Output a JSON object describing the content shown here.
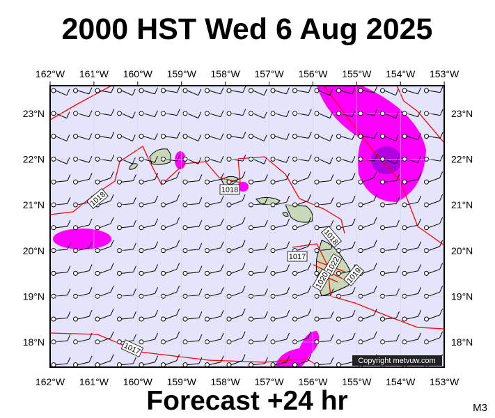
{
  "header": {
    "title": "2000 HST Wed 6 Aug 2025"
  },
  "footer": {
    "subtitle": "Forecast +24 hr",
    "model": "M3"
  },
  "map": {
    "copyright": "Copyright metvuw.com",
    "lon_labels": [
      "162°W",
      "161°W",
      "160°W",
      "159°W",
      "158°W",
      "157°W",
      "156°W",
      "155°W",
      "154°W",
      "153°W"
    ],
    "lat_labels": [
      "23°N",
      "22°N",
      "21°N",
      "20°N",
      "19°N",
      "18°N"
    ],
    "isobar_labels": [
      "1018",
      "1018",
      "1017",
      "1018",
      "1022",
      "1020",
      "1019",
      "1017"
    ]
  }
}
